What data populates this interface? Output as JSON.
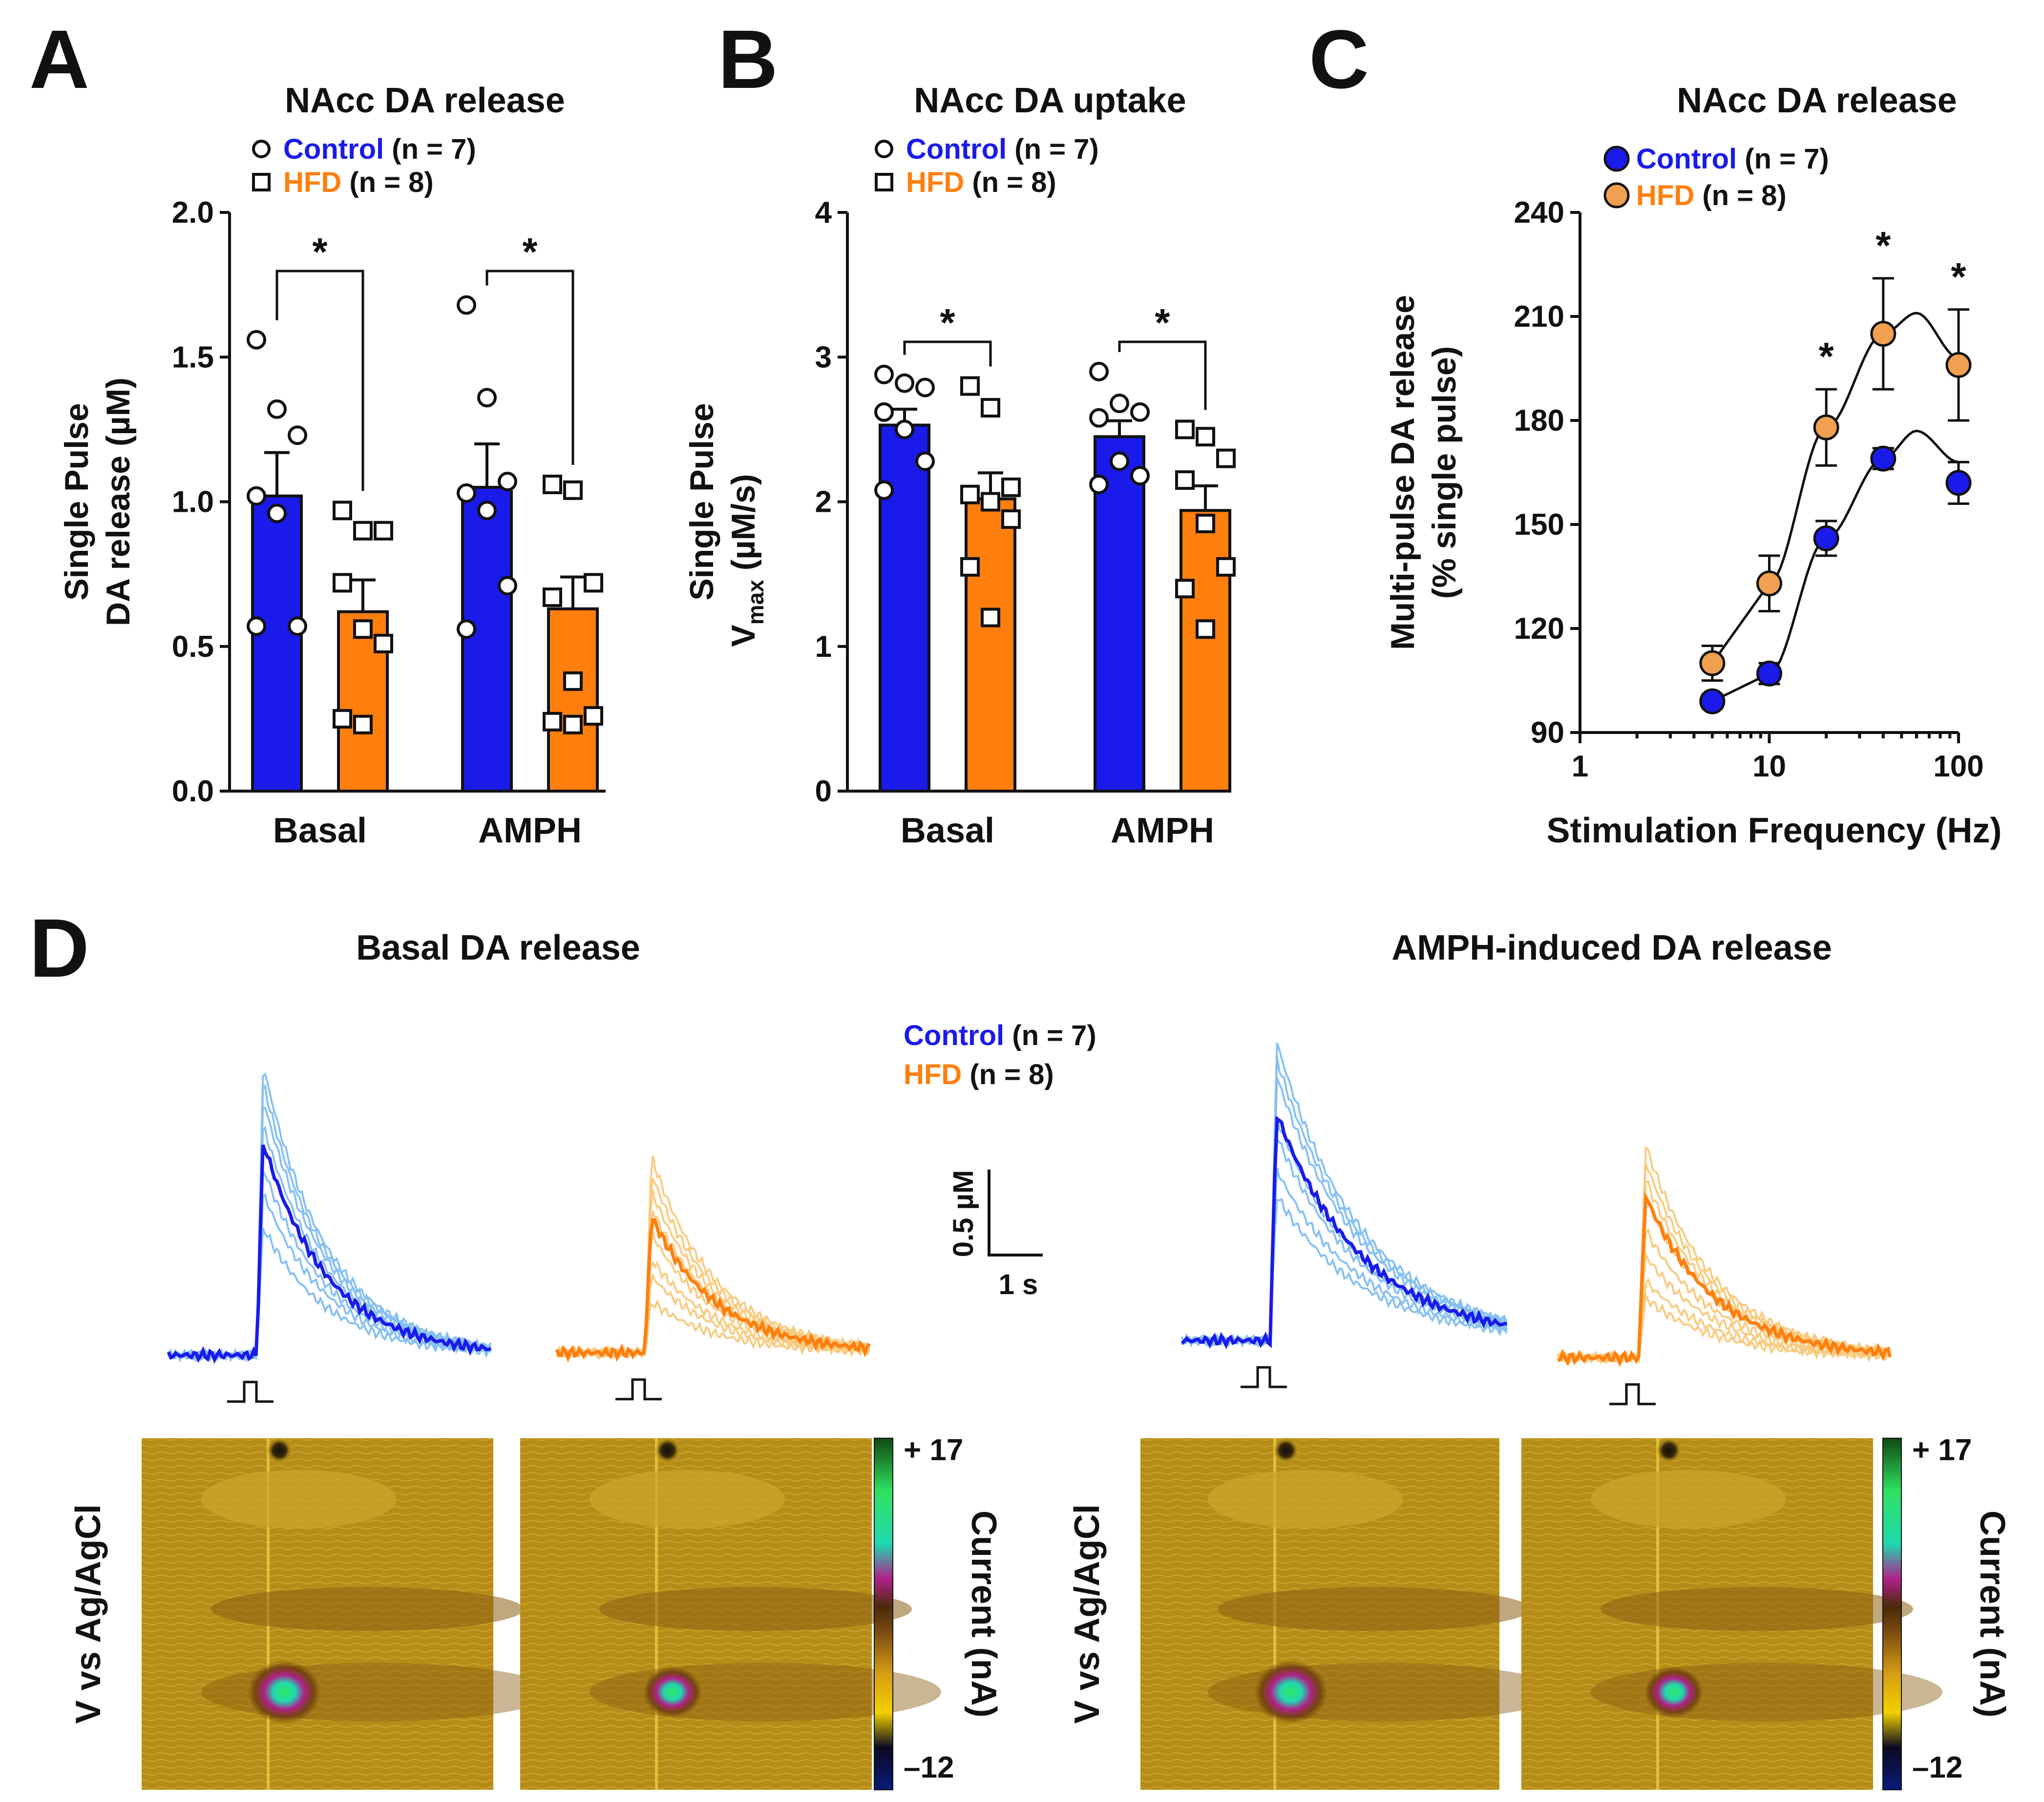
{
  "chart_data": [
    {
      "panel": "A",
      "type": "bar",
      "title": "NAcc DA release",
      "ylabel": "Single Pulse DA release (µM)",
      "ylim": [
        0,
        2.0
      ],
      "yticks": [
        "0.0",
        "0.5",
        "1.0",
        "1.5",
        "2.0"
      ],
      "categories": [
        "Basal",
        "AMPH"
      ],
      "legend": [
        {
          "name": "Control",
          "n": "(n = 7)",
          "marker": "circle",
          "color": "#1a1aeb"
        },
        {
          "name": "HFD",
          "n": "(n = 8)",
          "marker": "square",
          "color": "#ff7f0e"
        }
      ],
      "series": [
        {
          "name": "Control",
          "values": [
            1.02,
            1.05
          ],
          "sem": [
            0.15,
            0.15
          ],
          "points": [
            [
              1.56,
              1.32,
              1.23,
              1.02,
              0.96,
              0.57,
              0.57
            ],
            [
              1.68,
              1.36,
              1.07,
              1.03,
              0.97,
              0.71,
              0.56
            ]
          ]
        },
        {
          "name": "HFD",
          "values": [
            0.62,
            0.63
          ],
          "sem": [
            0.11,
            0.11
          ],
          "points": [
            [
              0.97,
              0.9,
              0.9,
              0.72,
              0.56,
              0.51,
              0.25,
              0.23
            ],
            [
              1.06,
              1.04,
              0.72,
              0.67,
              0.38,
              0.26,
              0.24,
              0.23
            ]
          ]
        }
      ],
      "significance": [
        "*",
        "*"
      ]
    },
    {
      "panel": "B",
      "type": "bar",
      "title": "NAcc DA uptake",
      "ylabel_line1": "Single Pulse",
      "ylabel_line2_main": "V",
      "ylabel_line2_sub": "max",
      "ylabel_line2_rest": " (µM/s)",
      "ylim": [
        0,
        4
      ],
      "yticks": [
        "0",
        "1",
        "2",
        "3",
        "4"
      ],
      "categories": [
        "Basal",
        "AMPH"
      ],
      "legend": [
        {
          "name": "Control",
          "n": "(n = 7)",
          "marker": "circle",
          "color": "#1a1aeb"
        },
        {
          "name": "HFD",
          "n": "(n = 8)",
          "marker": "square",
          "color": "#ff7f0e"
        }
      ],
      "series": [
        {
          "name": "Control",
          "values": [
            2.53,
            2.45
          ],
          "sem": [
            0.11,
            0.11
          ],
          "points": [
            [
              2.88,
              2.82,
              2.79,
              2.62,
              2.5,
              2.28,
              2.08
            ],
            [
              2.9,
              2.68,
              2.62,
              2.58,
              2.28,
              2.18,
              2.12
            ]
          ]
        },
        {
          "name": "HFD",
          "values": [
            2.02,
            1.94
          ],
          "sem": [
            0.18,
            0.17
          ],
          "points": [
            [
              2.8,
              2.65,
              2.1,
              2.05,
              2.0,
              1.88,
              1.55,
              1.2
            ],
            [
              2.5,
              2.45,
              2.3,
              2.15,
              1.85,
              1.55,
              1.4,
              1.12
            ]
          ]
        }
      ],
      "significance": [
        "*",
        "*"
      ]
    },
    {
      "panel": "C",
      "type": "line",
      "title": "NAcc DA release",
      "xlabel": "Stimulation Frequency (Hz)",
      "ylabel_line1": "Multi-pulse DA release",
      "ylabel_line2": "(% single pulse)",
      "xscale": "log",
      "xlim": [
        1,
        100
      ],
      "xticks": [
        "1",
        "10",
        "100"
      ],
      "ylim": [
        90,
        240
      ],
      "yticks": [
        "90",
        "120",
        "150",
        "180",
        "210",
        "240"
      ],
      "x": [
        5,
        10,
        20,
        40,
        100
      ],
      "legend": [
        {
          "name": "Control",
          "n": "(n = 7)",
          "marker": "filled-circle",
          "color": "#1a1aeb"
        },
        {
          "name": "HFD",
          "n": "(n = 8)",
          "marker": "filled-circle",
          "color": "#f0a050"
        }
      ],
      "series": [
        {
          "name": "Control",
          "values": [
            99,
            107,
            146,
            169,
            162
          ],
          "sem": [
            2,
            3,
            5,
            3,
            6
          ],
          "fit_peak": 177,
          "fit_peak_x": 60,
          "fit_end": 168
        },
        {
          "name": "HFD",
          "values": [
            110,
            133,
            178,
            205,
            196
          ],
          "sem": [
            5,
            8,
            11,
            16,
            16
          ],
          "fit_peak": 211,
          "fit_peak_x": 60,
          "fit_end": 198
        }
      ],
      "significance_at_x": [
        20,
        40,
        100
      ],
      "significance": [
        "*",
        "*",
        "*"
      ]
    },
    {
      "panel": "D",
      "type": "line",
      "titles": [
        "Basal DA release",
        "AMPH-induced DA release"
      ],
      "legend": [
        {
          "name": "Control",
          "n": "(n = 7)",
          "color": "#1a1aeb"
        },
        {
          "name": "HFD",
          "n": "(n = 8)",
          "color": "#ff7f0e"
        }
      ],
      "scalebar": {
        "y_label": "0.5 µM",
        "x_label": "1 s",
        "y_units": 0.5,
        "x_units": 1
      },
      "traces": [
        {
          "condition": "Basal",
          "group": "Control",
          "mean_peak_uM": 1.25,
          "individual_peaks_uM": [
            1.7,
            1.6,
            1.5,
            1.35,
            1.1,
            0.95,
            0.75
          ],
          "decay_s": 1.2
        },
        {
          "condition": "Basal",
          "group": "HFD",
          "mean_peak_uM": 0.8,
          "individual_peaks_uM": [
            1.15,
            1.05,
            0.95,
            0.85,
            0.7,
            0.55,
            0.45,
            0.3
          ],
          "decay_s": 1.2
        },
        {
          "condition": "AMPH",
          "group": "Control",
          "mean_peak_uM": 1.33,
          "individual_peaks_uM": [
            1.75,
            1.65,
            1.55,
            1.3,
            1.2,
            1.0,
            0.85
          ],
          "decay_s": 1.6
        },
        {
          "condition": "AMPH",
          "group": "HFD",
          "mean_peak_uM": 0.95,
          "individual_peaks_uM": [
            1.25,
            1.15,
            1.05,
            0.95,
            0.75,
            0.6,
            0.45,
            0.35
          ],
          "decay_s": 1.3
        }
      ],
      "colorplot": {
        "type": "heatmap",
        "ylabel": "V vs Ag/AgCl",
        "colorbar_label": "Current (nA)",
        "colorbar_max": "+ 17",
        "colorbar_min": "–12",
        "hotspot_intensity": [
          1.0,
          0.8,
          1.0,
          0.8
        ]
      }
    }
  ],
  "colors": {
    "control_bar": "#1a1aeb",
    "hfd_bar": "#ff7f0e",
    "control_light": "#86c0f2",
    "hfd_light": "#f9cb80",
    "hfd_circle": "#f0a050",
    "colorplot_base": "#b58c18"
  }
}
